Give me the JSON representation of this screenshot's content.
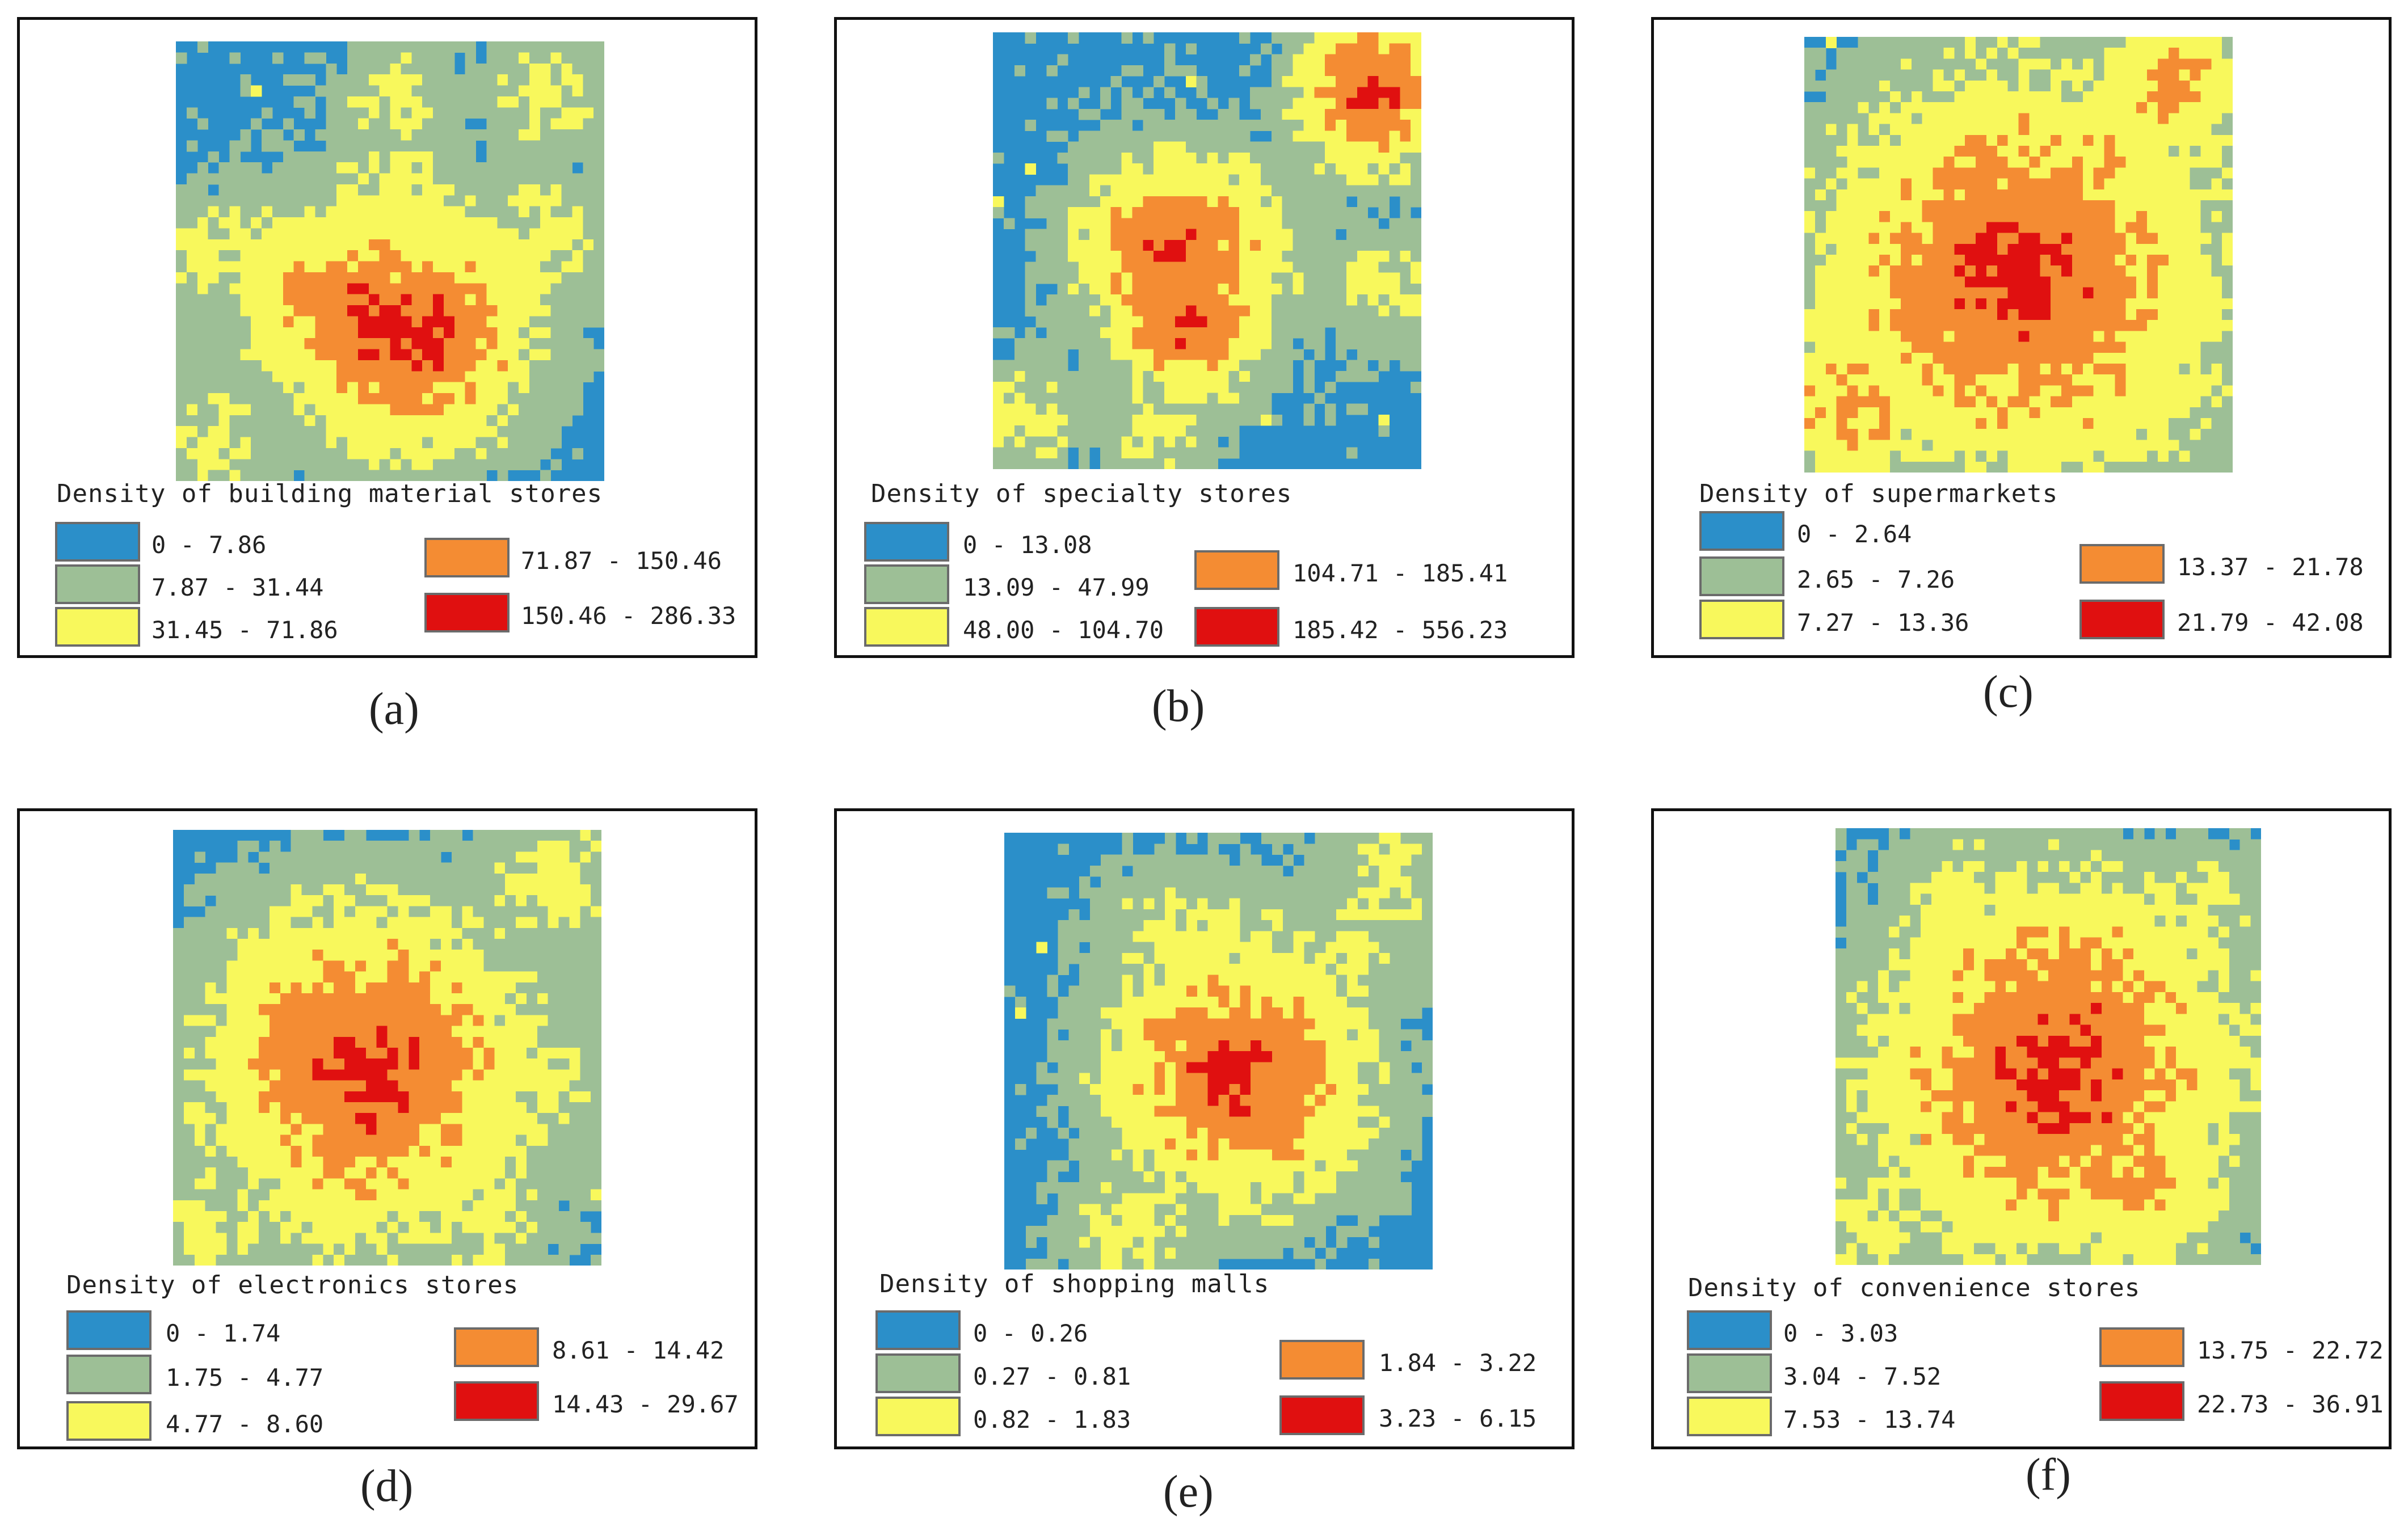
{
  "colors": {
    "c0": "#2b8fc9",
    "c1": "#9dbf96",
    "c2": "#f8f85c",
    "c3": "#f48c33",
    "c4": "#e01010"
  },
  "chart_data": [
    {
      "type": "heatmap",
      "panel": "(a)",
      "title": "Density of building material stores",
      "classes": [
        "0 - 7.86",
        "7.87 - 31.44",
        "31.45 - 71.86",
        "71.87 - 150.46",
        "150.46 - 286.33"
      ],
      "hotspots": [
        [
          0.56,
          0.67,
          4,
          0.45
        ],
        [
          0.45,
          0.63,
          4,
          0.4
        ],
        [
          0.36,
          0.62,
          3,
          0.35
        ],
        [
          0.62,
          0.59,
          3,
          0.4
        ],
        [
          0.3,
          0.56,
          3,
          0.3
        ],
        [
          0.66,
          0.53,
          2,
          0.3
        ],
        [
          0.28,
          0.55,
          2,
          0.3
        ],
        [
          0.2,
          0.48,
          2,
          0.28
        ],
        [
          0.5,
          0.6,
          2,
          0.35
        ],
        [
          0.86,
          0.45,
          2,
          0.3
        ],
        [
          0.48,
          0.34,
          2,
          0.28
        ],
        [
          0.55,
          0.37,
          2,
          0.28
        ],
        [
          0.77,
          0.53,
          2,
          0.25
        ],
        [
          0.05,
          0.48,
          2,
          0.25
        ],
        [
          0.08,
          0.92,
          2,
          0.3
        ],
        [
          0.73,
          0.86,
          1,
          0.25
        ],
        [
          0.86,
          0.12,
          2,
          0.25
        ],
        [
          0.52,
          0.13,
          2,
          0.25
        ]
      ],
      "noise": [
        0.25,
        0.09,
        0.015
      ],
      "seed": 11
    },
    {
      "type": "heatmap",
      "panel": "(b)",
      "title": "Density of specialty stores",
      "classes": [
        "0 - 13.08",
        "13.09 - 47.99",
        "48.00 - 104.70",
        "104.71 - 185.41",
        "185.42 - 556.23"
      ],
      "hotspots": [
        [
          0.42,
          0.5,
          4,
          0.35
        ],
        [
          0.48,
          0.53,
          3,
          0.35
        ],
        [
          0.36,
          0.47,
          3,
          0.3
        ],
        [
          0.53,
          0.46,
          3,
          0.3
        ],
        [
          0.46,
          0.65,
          4,
          0.3
        ],
        [
          0.88,
          0.14,
          4,
          0.3
        ],
        [
          0.94,
          0.12,
          2,
          0.3
        ],
        [
          0.07,
          0.88,
          2,
          0.25
        ],
        [
          0.4,
          0.36,
          2,
          0.25
        ],
        [
          0.91,
          0.58,
          2,
          0.25
        ],
        [
          0.28,
          0.54,
          2,
          0.25
        ],
        [
          0.39,
          0.91,
          2,
          0.25
        ],
        [
          0.62,
          0.52,
          2,
          0.25
        ]
      ],
      "noise": [
        0.24,
        0.08,
        0.01
      ],
      "seed": 23
    },
    {
      "type": "heatmap",
      "panel": "(c)",
      "title": "Density of supermarkets",
      "classes": [
        "0 - 2.64",
        "2.65 - 7.26",
        "7.27 - 13.36",
        "13.37 - 21.78",
        "21.79 - 42.08"
      ],
      "hotspots": [
        [
          0.5,
          0.55,
          4,
          0.78
        ],
        [
          0.45,
          0.48,
          3,
          0.45
        ],
        [
          0.6,
          0.57,
          3,
          0.45
        ],
        [
          0.3,
          0.6,
          3,
          0.4
        ],
        [
          0.68,
          0.62,
          3,
          0.45
        ],
        [
          0.42,
          0.64,
          3,
          0.4
        ],
        [
          0.85,
          0.57,
          2,
          0.35
        ],
        [
          0.38,
          0.5,
          2,
          0.35
        ],
        [
          0.85,
          0.12,
          3,
          0.35
        ],
        [
          0.1,
          0.85,
          3,
          0.35
        ],
        [
          0.72,
          0.48,
          2,
          0.3
        ],
        [
          0.8,
          0.82,
          2,
          0.35
        ],
        [
          0.4,
          0.75,
          2,
          0.3
        ]
      ],
      "noise": [
        0.28,
        0.1,
        0.02
      ],
      "seed": 37
    },
    {
      "type": "heatmap",
      "panel": "(d)",
      "title": "Density of electronics stores",
      "classes": [
        "0 - 1.74",
        "1.75 - 4.77",
        "4.77 - 8.60",
        "8.61 - 14.42",
        "14.43 - 29.67"
      ],
      "hotspots": [
        [
          0.45,
          0.55,
          4,
          0.62
        ],
        [
          0.35,
          0.42,
          3,
          0.45
        ],
        [
          0.55,
          0.54,
          3,
          0.4
        ],
        [
          0.33,
          0.56,
          3,
          0.4
        ],
        [
          0.48,
          0.67,
          3,
          0.4
        ],
        [
          0.83,
          0.58,
          2,
          0.35
        ],
        [
          0.72,
          0.72,
          2,
          0.3
        ],
        [
          0.38,
          0.9,
          2,
          0.3
        ],
        [
          0.88,
          0.11,
          2,
          0.35
        ],
        [
          0.07,
          0.92,
          2,
          0.3
        ],
        [
          0.74,
          0.88,
          2,
          0.3
        ],
        [
          0.25,
          0.63,
          2,
          0.3
        ]
      ],
      "noise": [
        0.28,
        0.1,
        0.02
      ],
      "seed": 41
    },
    {
      "type": "heatmap",
      "panel": "(e)",
      "title": "Density of shopping malls",
      "classes": [
        "0 - 0.26",
        "0.27 - 0.81",
        "0.82 - 1.83",
        "1.84 - 3.22",
        "3.23 - 6.15"
      ],
      "hotspots": [
        [
          0.55,
          0.55,
          4,
          0.5
        ],
        [
          0.4,
          0.5,
          3,
          0.3
        ],
        [
          0.72,
          0.6,
          2,
          0.3
        ],
        [
          0.9,
          0.1,
          2,
          0.3
        ],
        [
          0.38,
          0.25,
          2,
          0.3
        ],
        [
          0.52,
          0.25,
          2,
          0.3
        ],
        [
          0.3,
          0.9,
          2,
          0.3
        ],
        [
          0.76,
          0.72,
          2,
          0.25
        ],
        [
          0.82,
          0.25,
          2,
          0.25
        ]
      ],
      "noise": [
        0.22,
        0.07,
        0.01
      ],
      "seed": 53
    },
    {
      "type": "heatmap",
      "panel": "(f)",
      "title": "Density of convenience stores",
      "classes": [
        "0 - 3.03",
        "3.04 - 7.52",
        "7.53 - 13.74",
        "13.75 - 22.72",
        "22.73 - 36.91"
      ],
      "hotspots": [
        [
          0.52,
          0.55,
          4,
          0.72
        ],
        [
          0.46,
          0.52,
          3,
          0.45
        ],
        [
          0.42,
          0.48,
          3,
          0.35
        ],
        [
          0.6,
          0.58,
          2,
          0.4
        ],
        [
          0.37,
          0.64,
          2,
          0.35
        ],
        [
          0.25,
          0.45,
          2,
          0.3
        ],
        [
          0.72,
          0.82,
          3,
          0.35
        ],
        [
          0.85,
          0.2,
          2,
          0.3
        ],
        [
          0.29,
          0.16,
          2,
          0.3
        ],
        [
          0.08,
          0.9,
          2,
          0.3
        ],
        [
          0.38,
          0.9,
          2,
          0.3
        ],
        [
          0.65,
          0.25,
          2,
          0.3
        ]
      ],
      "noise": [
        0.28,
        0.1,
        0.02
      ],
      "seed": 67
    }
  ]
}
